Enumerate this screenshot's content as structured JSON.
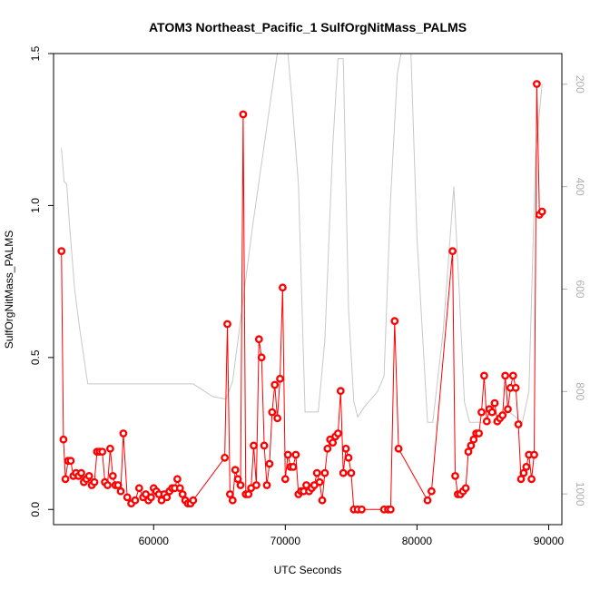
{
  "chart_data": {
    "type": "line",
    "title": "ATOM3 Northeast_Pacific_1 SulfOrgNitMass_PALMS",
    "xlabel": "UTC Seconds",
    "ylabel": "SulfOrgNitMass_PALMS",
    "xlim": [
      52400,
      91000
    ],
    "ylim": [
      -0.05,
      1.5
    ],
    "y2lim": [
      1060,
      140
    ],
    "y2_reversed": true,
    "x_ticks": [
      60000,
      70000,
      80000,
      90000
    ],
    "y_ticks": [
      0.0,
      0.5,
      1.0,
      1.5
    ],
    "y2_ticks": [
      200,
      400,
      600,
      800,
      1000
    ],
    "grid": false,
    "colors": {
      "series": "#ff0000",
      "secondary": "#c8c8c8",
      "axis": "#000000",
      "secondary_axis": "#b0b0b0"
    },
    "series": [
      {
        "axis": "left",
        "style": "points+line",
        "x": [
          53000,
          53150,
          53300,
          53500,
          53700,
          53900,
          54100,
          54300,
          54500,
          54700,
          54900,
          55100,
          55300,
          55500,
          55700,
          55900,
          56100,
          56300,
          56500,
          56700,
          56900,
          57100,
          57300,
          57500,
          57700,
          58000,
          58300,
          58600,
          58900,
          59200,
          59400,
          59600,
          59800,
          60000,
          60200,
          60400,
          60600,
          60800,
          61000,
          61200,
          61400,
          61600,
          61800,
          62000,
          62200,
          62400,
          62600,
          62800,
          63000,
          65400,
          65600,
          65800,
          66000,
          66200,
          66400,
          66600,
          66800,
          67000,
          67200,
          67400,
          67600,
          67800,
          68000,
          68200,
          68400,
          68600,
          68800,
          69000,
          69200,
          69400,
          69600,
          69800,
          70000,
          70200,
          70400,
          70600,
          70800,
          71000,
          71200,
          71400,
          71600,
          71800,
          72000,
          72200,
          72400,
          72600,
          72800,
          73000,
          73200,
          73400,
          73600,
          73800,
          74000,
          74200,
          74400,
          74600,
          74800,
          75000,
          75200,
          75500,
          75800,
          77500,
          77800,
          78000,
          78300,
          78600,
          80800,
          81100,
          82700,
          82900,
          83100,
          83300,
          83500,
          83700,
          83900,
          84100,
          84300,
          84500,
          84700,
          84900,
          85100,
          85300,
          85500,
          85700,
          85900,
          86100,
          86300,
          86500,
          86700,
          86900,
          87100,
          87300,
          87500,
          87700,
          87900,
          88100,
          88300,
          88500,
          88700,
          88900,
          89100,
          89300,
          89500
        ],
        "values": [
          0.85,
          0.23,
          0.1,
          0.16,
          0.16,
          0.11,
          0.12,
          0.11,
          0.12,
          0.09,
          0.1,
          0.11,
          0.08,
          0.09,
          0.19,
          0.19,
          0.19,
          0.09,
          0.08,
          0.2,
          0.11,
          0.08,
          0.08,
          0.06,
          0.25,
          0.04,
          0.02,
          0.03,
          0.07,
          0.04,
          0.05,
          0.03,
          0.04,
          0.07,
          0.06,
          0.05,
          0.03,
          0.05,
          0.04,
          0.06,
          0.07,
          0.07,
          0.1,
          0.07,
          0.05,
          0.03,
          0.02,
          0.02,
          0.03,
          0.17,
          0.61,
          0.05,
          0.03,
          0.13,
          0.1,
          0.08,
          1.3,
          0.05,
          0.05,
          0.07,
          0.21,
          0.08,
          0.56,
          0.5,
          0.21,
          0.08,
          0.15,
          0.32,
          0.41,
          0.3,
          0.43,
          0.73,
          0.1,
          0.18,
          0.14,
          0.14,
          0.18,
          0.05,
          0.06,
          0.06,
          0.08,
          0.06,
          0.07,
          0.08,
          0.12,
          0.09,
          0.03,
          0.12,
          0.2,
          0.23,
          0.22,
          0.24,
          0.25,
          0.39,
          0.12,
          0.2,
          0.17,
          0.12,
          0.0,
          0.0,
          0.0,
          0.0,
          0.0,
          0.0,
          0.62,
          0.2,
          0.03,
          0.06,
          0.85,
          0.11,
          0.05,
          0.05,
          0.06,
          0.07,
          0.19,
          0.21,
          0.23,
          0.25,
          0.25,
          0.32,
          0.44,
          0.29,
          0.33,
          0.32,
          0.35,
          0.29,
          0.3,
          0.31,
          0.44,
          0.33,
          0.4,
          0.44,
          0.4,
          0.28,
          0.1,
          0.12,
          0.14,
          0.18,
          0.1,
          0.18,
          1.4,
          0.97,
          0.98
        ]
      },
      {
        "axis": "right",
        "style": "line",
        "x": [
          53000,
          53200,
          53400,
          53600,
          54000,
          54400,
          55000,
          60000,
          63000,
          64500,
          65500,
          66000,
          66500,
          67000,
          67500,
          68000,
          68500,
          69000,
          69500,
          69800,
          70000,
          70200,
          70500,
          71000,
          71500,
          72500,
          73000,
          73600,
          74000,
          74400,
          74800,
          75200,
          75500,
          76000,
          77000,
          77500,
          78000,
          78500,
          79000,
          79500,
          80000,
          80800,
          81200,
          82000,
          82800,
          83200,
          83600,
          84000,
          85000,
          86000,
          87000,
          88000,
          88500,
          89000,
          89500
        ],
        "values": [
          325,
          390,
          395,
          470,
          600,
          680,
          785,
          785,
          785,
          810,
          815,
          780,
          680,
          580,
          480,
          390,
          300,
          210,
          120,
          100,
          100,
          140,
          230,
          395,
          840,
          840,
          700,
          320,
          150,
          150,
          640,
          820,
          850,
          830,
          800,
          770,
          420,
          180,
          110,
          110,
          500,
          860,
          860,
          680,
          400,
          600,
          820,
          860,
          860,
          860,
          840,
          860,
          800,
          340,
          200
        ]
      }
    ]
  }
}
